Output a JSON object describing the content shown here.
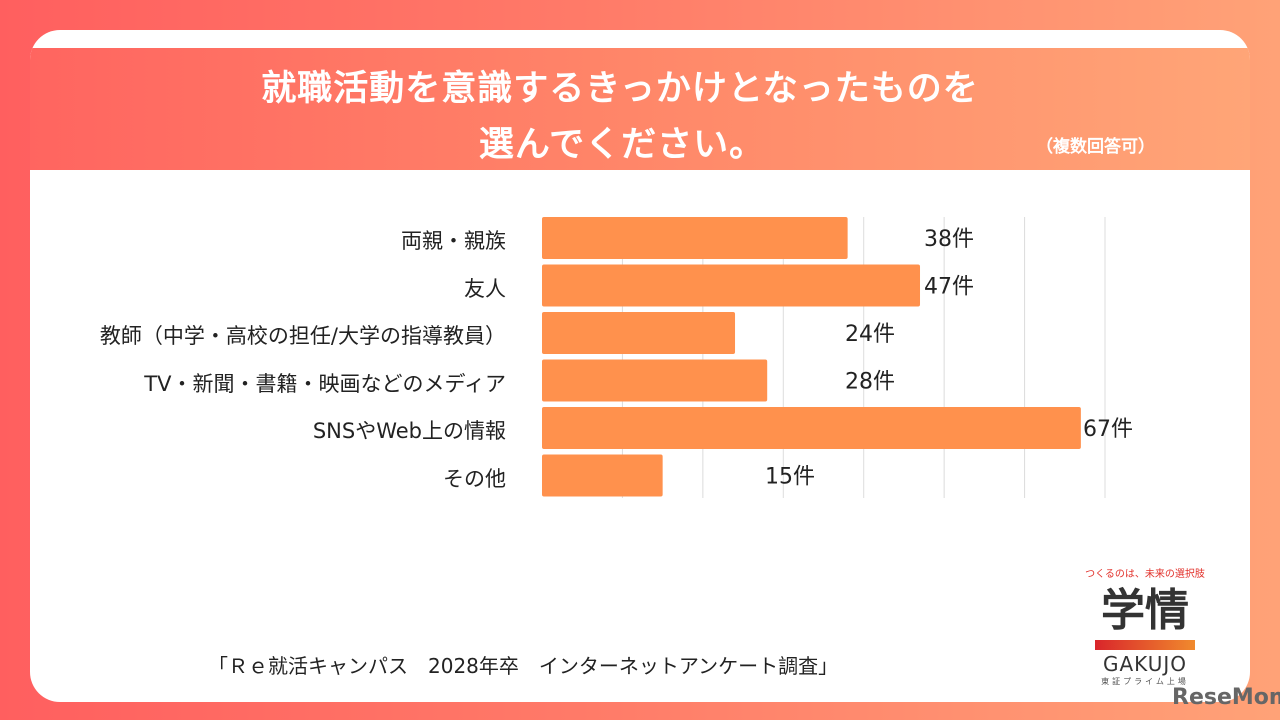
{
  "header": {
    "title_line1": "就職活動を意識するきっかけとなったものを",
    "title_line2": "選んでください。",
    "note": "（複数回答可）"
  },
  "chart_data": {
    "type": "bar",
    "orientation": "horizontal",
    "categories": [
      "両親・親族",
      "友人",
      "教師（中学・高校の担任/大学の指導教員）",
      "TV・新聞・書籍・映画などのメディア",
      "SNSやWeb上の情報",
      "その他"
    ],
    "values": [
      38,
      47,
      24,
      28,
      67,
      15
    ],
    "data_labels": [
      "38件",
      "47件",
      "24件",
      "28件",
      "67件",
      "15件"
    ],
    "unit": "件",
    "xlim": [
      0,
      70
    ],
    "grid": true,
    "bar_color": "#ff914d"
  },
  "source": "「Ｒｅ就活キャンパス　2028年卒　インターネットアンケート調査」",
  "logo": {
    "tagline": "つくるのは、未来の選択肢",
    "mark": "学情",
    "name": "GAKUJO",
    "sub": "東証プライム上場"
  },
  "watermark": "ReseMom"
}
